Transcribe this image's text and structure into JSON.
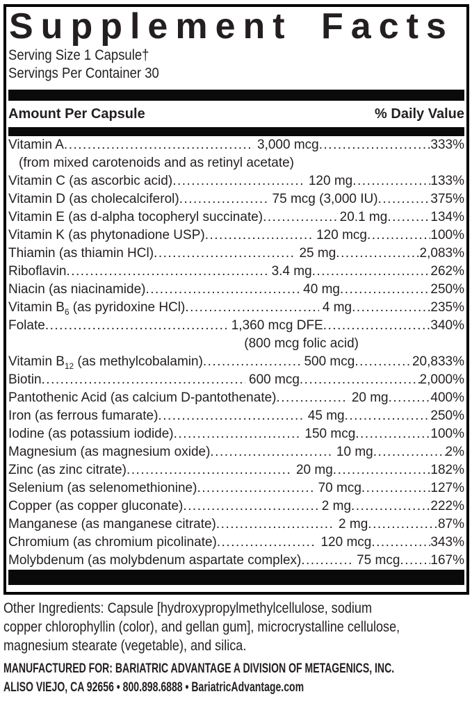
{
  "header": {
    "title": "Supplement Facts",
    "serving_size": "Serving Size 1 Capsule†",
    "servings_per_container": "Servings Per Container 30"
  },
  "table": {
    "col_left": "Amount Per Capsule",
    "col_right": "% Daily Value",
    "rows": [
      {
        "name": "Vitamin A",
        "amount": "3,000 mcg",
        "dv": "333%"
      },
      {
        "note": "(from mixed carotenoids and as retinyl acetate)",
        "style": "indent"
      },
      {
        "name": "Vitamin C (as ascorbic acid)",
        "amount": "120 mg",
        "dv": "133%"
      },
      {
        "name": "Vitamin D (as cholecalciferol)",
        "amount": "75 mcg (3,000 IU)",
        "dv": "375%"
      },
      {
        "name": "Vitamin E (as d-alpha tocopheryl succinate)",
        "amount": "20.1 mg",
        "dv": "134%"
      },
      {
        "name": "Vitamin K (as phytonadione USP)",
        "amount": "120 mcg",
        "dv": "100%"
      },
      {
        "name": "Thiamin (as thiamin HCl)",
        "amount": "25 mg",
        "dv": "2,083%"
      },
      {
        "name": "Riboflavin",
        "amount": "3.4 mg",
        "dv": "262%"
      },
      {
        "name": "Niacin (as niacinamide)",
        "amount": "40 mg",
        "dv": "250%"
      },
      {
        "name": [
          {
            "t": "Vitamin B"
          },
          {
            "t": "6",
            "sub": true
          },
          {
            "t": " (as pyridoxine HCl)"
          }
        ],
        "amount": "4 mg",
        "dv": "235%"
      },
      {
        "name": "Folate",
        "amount": "1,360 mcg DFE",
        "dv": "340%"
      },
      {
        "note": "(800 mcg folic acid)",
        "style": "under-amount"
      },
      {
        "name": [
          {
            "t": "Vitamin B"
          },
          {
            "t": "12",
            "sub": true
          },
          {
            "t": " (as methylcobalamin)"
          }
        ],
        "amount": "500 mcg",
        "dv": "20,833%"
      },
      {
        "name": "Biotin",
        "amount": "600 mcg",
        "dv": "2,000%"
      },
      {
        "name": "Pantothenic Acid (as calcium D-pantothenate)",
        "amount": "20 mg",
        "dv": "400%"
      },
      {
        "name": "Iron (as ferrous fumarate)",
        "amount": "45 mg",
        "dv": "250%"
      },
      {
        "name": "Iodine (as potassium iodide)",
        "amount": "150 mcg",
        "dv": "100%"
      },
      {
        "name": "Magnesium (as magnesium oxide)",
        "amount": "10 mg",
        "dv": "2%"
      },
      {
        "name": "Zinc (as zinc citrate)",
        "amount": "20 mg",
        "dv": "182%"
      },
      {
        "name": "Selenium (as selenomethionine)",
        "amount": "70 mcg",
        "dv": "127%"
      },
      {
        "name": "Copper (as copper gluconate)",
        "amount": "2 mg",
        "dv": "222%"
      },
      {
        "name": "Manganese (as manganese citrate)",
        "amount": "2 mg",
        "dv": "87%"
      },
      {
        "name": "Chromium (as chromium picolinate)",
        "amount": "120 mcg",
        "dv": "343%"
      },
      {
        "name": "Molybdenum (as molybdenum aspartate complex)",
        "amount": "75 mcg",
        "dv": "167%"
      }
    ]
  },
  "footer": {
    "other_ingredients_lines": [
      "Other Ingredients: Capsule [hydroxypropylmethylcellulose, sodium",
      "copper chlorophyllin (color), and gellan gum], microcrystalline cellulose,",
      "magnesium stearate (vegetable), and silica."
    ],
    "manufacturer_lines": [
      "MANUFACTURED FOR: BARIATRIC ADVANTAGE A DIVISION OF METAGENICS, INC.",
      "ALISO VIEJO, CA 92656 • 800.898.6888 • BariatricAdvantage.com"
    ]
  },
  "colors": {
    "text": "#231f20",
    "bar": "#0a0a0a",
    "border": "#000000",
    "background": "#ffffff"
  }
}
